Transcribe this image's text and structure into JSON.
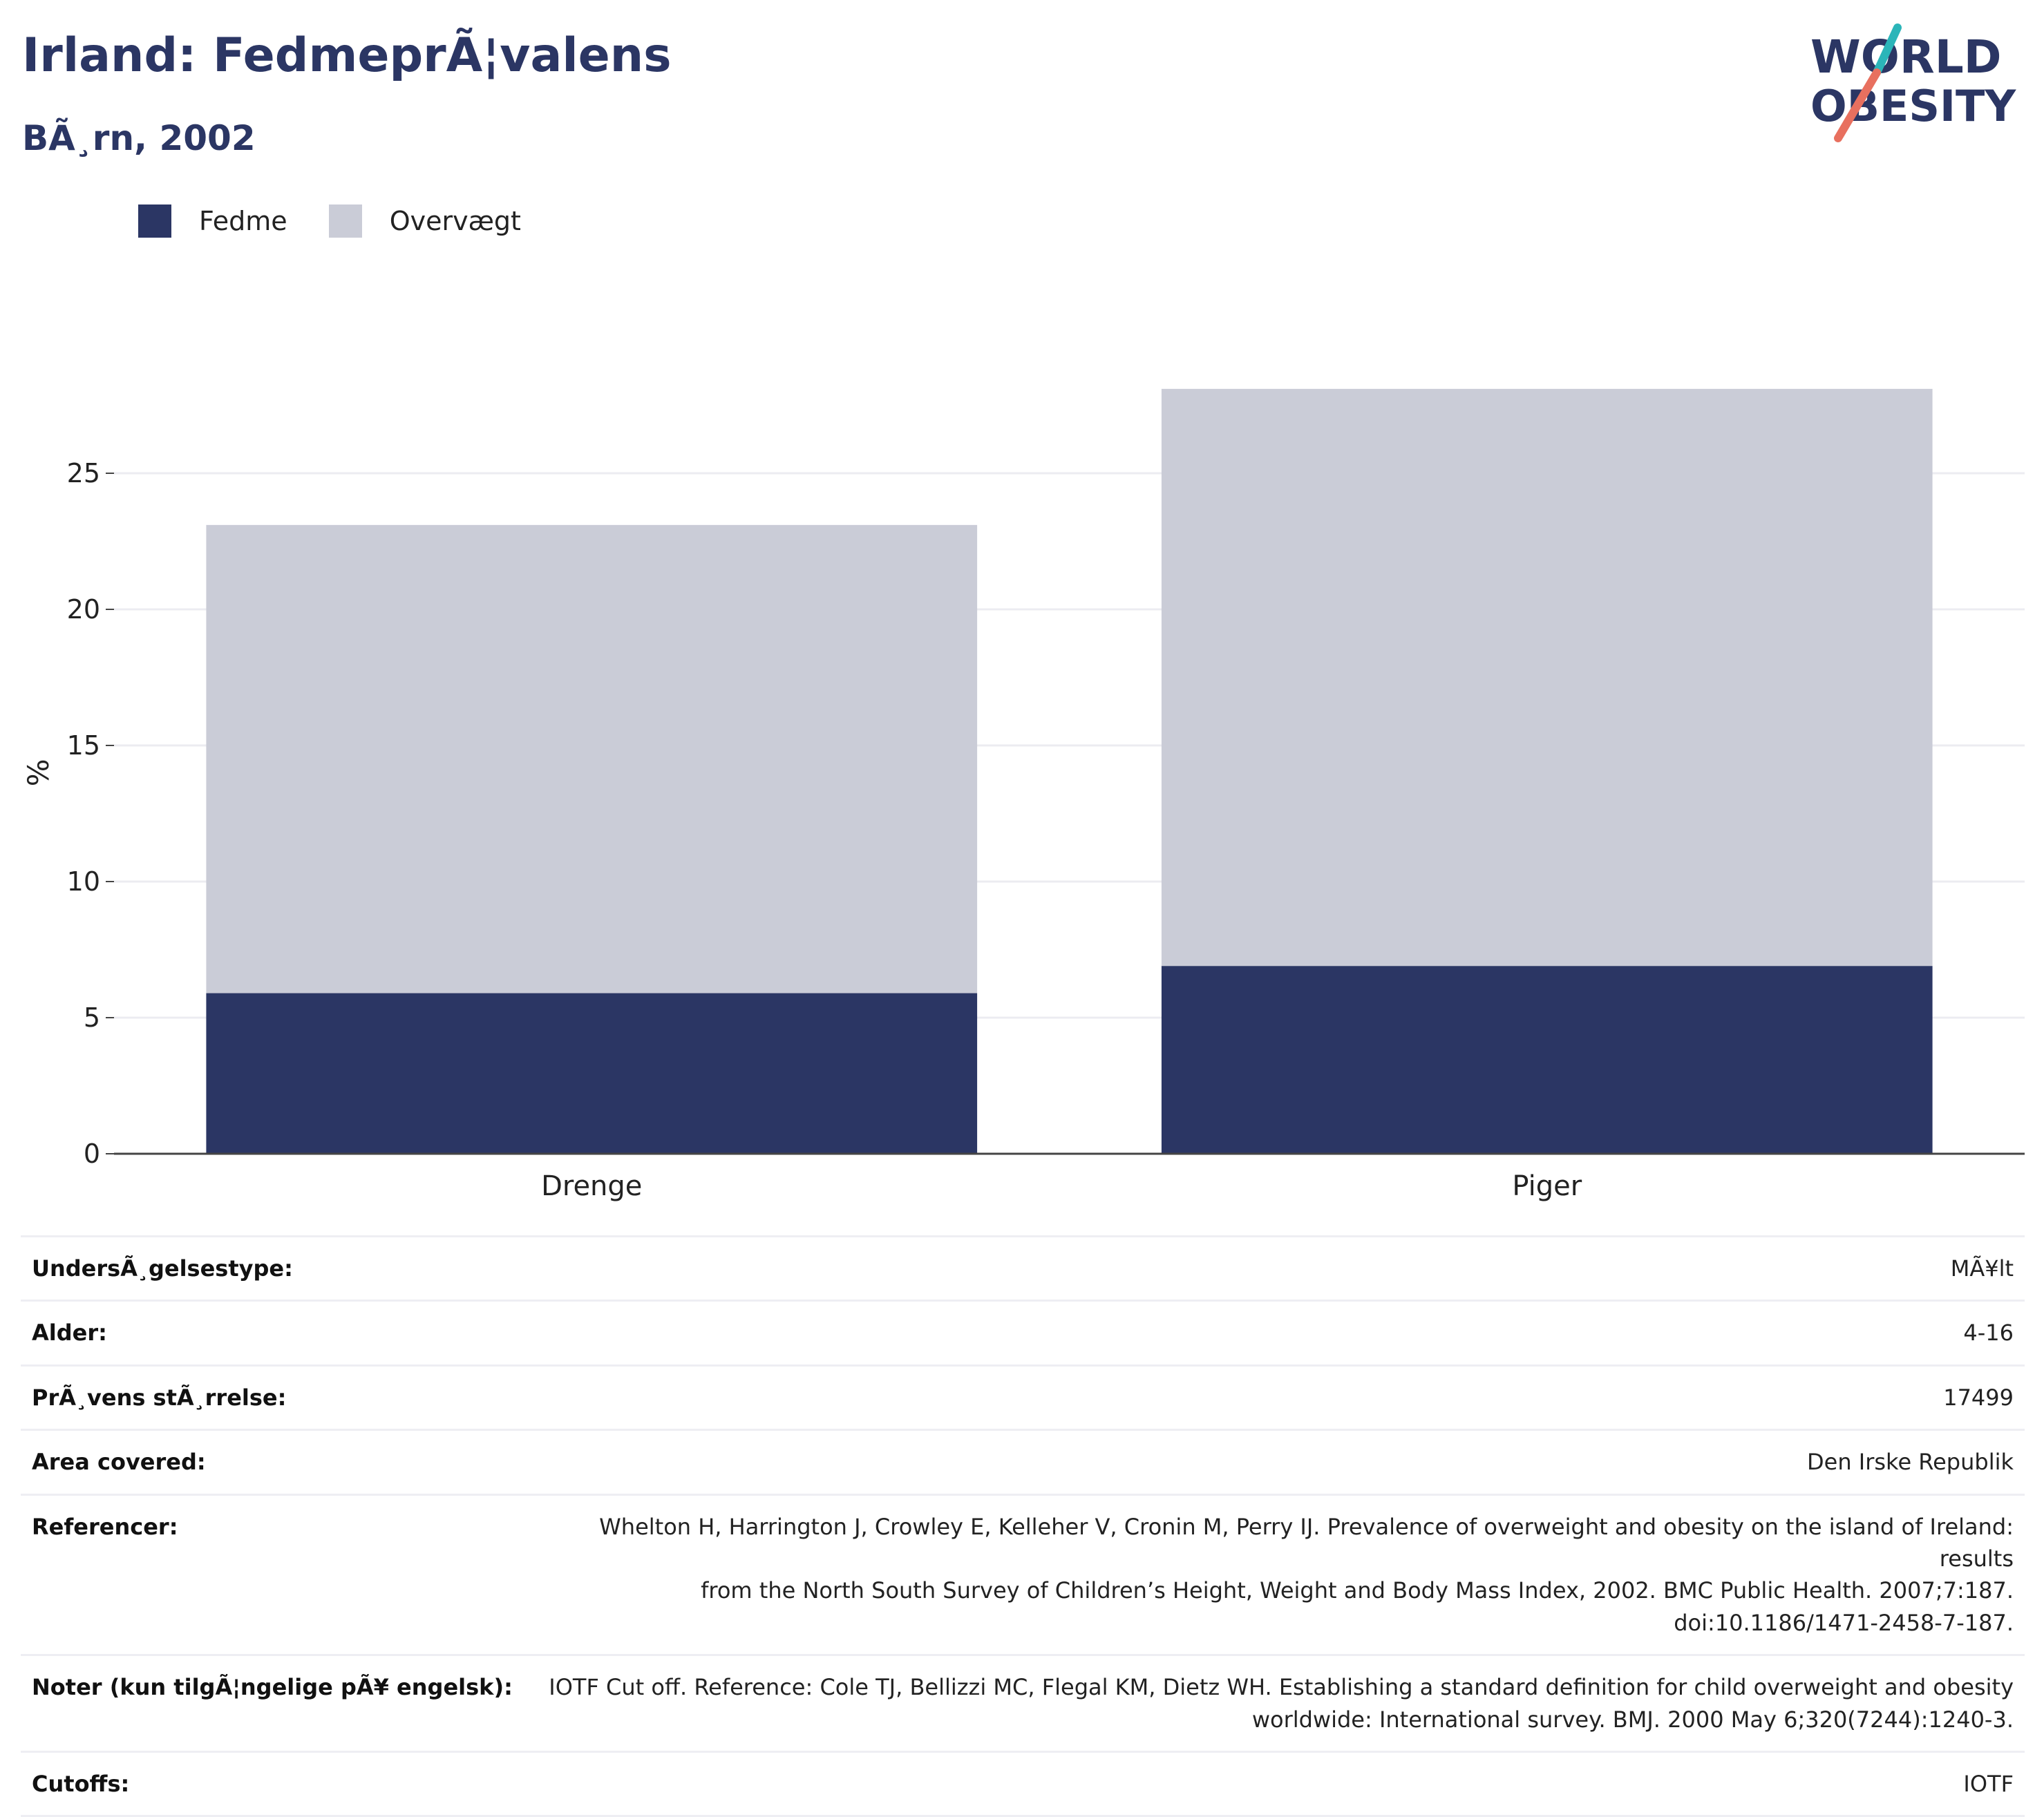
{
  "header": {
    "title": "Irland: FedmeprÃ¦valens",
    "subtitle": "BÃ¸rn, 2002"
  },
  "logo": {
    "line1": "WORLD",
    "line2": "OBESITY",
    "colors": {
      "text": "#2b3664",
      "teal": "#2bb5b9",
      "coral": "#e8705f"
    }
  },
  "colors": {
    "fedme": "#2b3664",
    "overvaegt": "#caccd7",
    "grid": "#ececf1",
    "axis": "#444444"
  },
  "legend": [
    {
      "label": "Fedme",
      "color": "#2b3664"
    },
    {
      "label": "Overvægt",
      "color": "#caccd7"
    }
  ],
  "chart_data": {
    "type": "bar",
    "stacked": true,
    "categories": [
      "Drenge",
      "Piger"
    ],
    "series": [
      {
        "name": "Fedme",
        "values": [
          5.9,
          6.9
        ]
      },
      {
        "name": "Overvægt",
        "values": [
          17.2,
          21.2
        ]
      }
    ],
    "totals": [
      23.1,
      28.1
    ],
    "ylabel": "%",
    "yticks": [
      0,
      5,
      10,
      15,
      20,
      25
    ],
    "ylim": [
      0,
      28.1
    ],
    "grid": true,
    "legend_position": "top-left"
  },
  "info": [
    {
      "key": "UndersÃ¸gelsestype:",
      "value": [
        "MÃ¥lt"
      ]
    },
    {
      "key": "Alder:",
      "value": [
        "4-16"
      ]
    },
    {
      "key": "PrÃ¸vens stÃ¸rrelse:",
      "value": [
        "17499"
      ]
    },
    {
      "key": "Area covered:",
      "value": [
        "Den Irske Republik"
      ]
    },
    {
      "key": "Referencer:",
      "value": [
        "Whelton H, Harrington J, Crowley E, Kelleher V, Cronin M, Perry IJ. Prevalence of overweight and obesity on the island of Ireland: results",
        "from the North South Survey of Children’s Height, Weight and Body Mass Index, 2002. BMC Public Health. 2007;7:187.",
        "doi:10.1186/1471-2458-7-187."
      ]
    },
    {
      "key": "Noter (kun tilgÃ¦ngelige pÃ¥ engelsk):",
      "value": [
        "IOTF Cut off. Reference: Cole TJ, Bellizzi MC, Flegal KM, Dietz WH. Establishing a standard definition for child overweight and obesity",
        "worldwide: International survey. BMJ. 2000 May 6;320(7244):1240-3."
      ]
    },
    {
      "key": "Cutoffs:",
      "value": [
        "IOTF"
      ]
    }
  ]
}
